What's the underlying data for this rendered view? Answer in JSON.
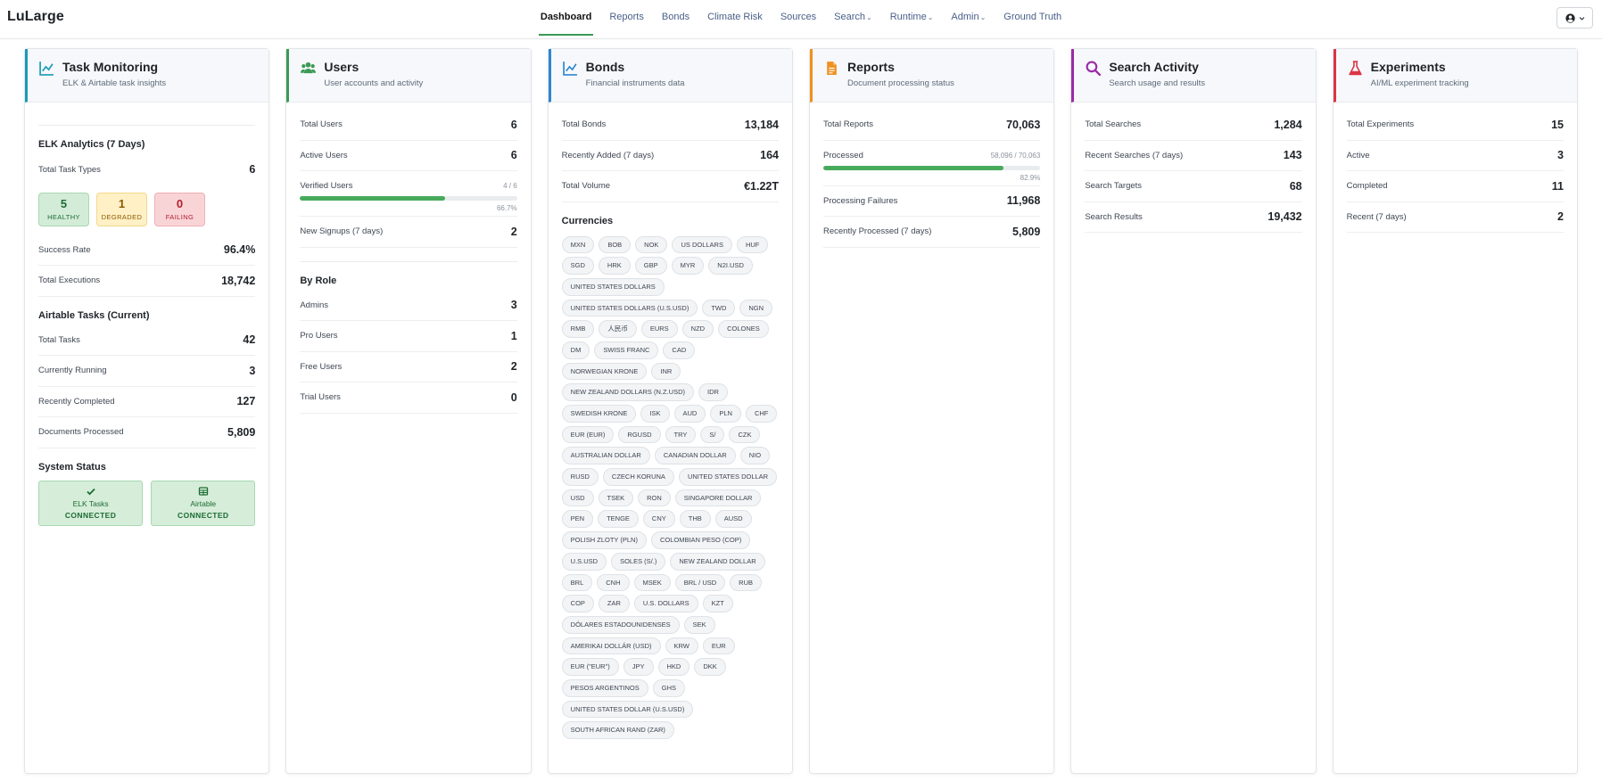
{
  "nav": {
    "brand": "LuLarge",
    "links": [
      {
        "label": "Dashboard",
        "active": true
      },
      {
        "label": "Reports"
      },
      {
        "label": "Bonds"
      },
      {
        "label": "Climate Risk"
      },
      {
        "label": "Sources"
      },
      {
        "label": "Search",
        "dropdown": true
      },
      {
        "label": "Runtime",
        "dropdown": true
      },
      {
        "label": "Admin",
        "dropdown": true
      },
      {
        "label": "Ground Truth"
      }
    ],
    "user_icon": "user-circle-icon",
    "chevron": "chevron-down-icon"
  },
  "colors": {
    "task": "#1a9bb5",
    "users": "#3a9a56",
    "bonds": "#2f86d1",
    "reports": "#f0901f",
    "search": "#9b2aa8",
    "experiments": "#dc3545",
    "success": "#47aa5b"
  },
  "task": {
    "icon": "chart-line-icon",
    "title": "Task Monitoring",
    "subtitle": "ELK & Airtable task insights",
    "elk_heading": "ELK Analytics (7 Days)",
    "total_task_types_label": "Total Task Types",
    "total_task_types": "6",
    "badges": [
      {
        "num": "5",
        "label": "HEALTHY"
      },
      {
        "num": "1",
        "label": "DEGRADED"
      },
      {
        "num": "0",
        "label": "FAILING"
      }
    ],
    "success_rate_label": "Success Rate",
    "success_rate": "96.4%",
    "total_exec_label": "Total Executions",
    "total_exec": "18,742",
    "airtable_heading": "Airtable Tasks (Current)",
    "airtable_rows": [
      {
        "label": "Total Tasks",
        "value": "42"
      },
      {
        "label": "Currently Running",
        "value": "3"
      },
      {
        "label": "Recently Completed",
        "value": "127"
      },
      {
        "label": "Documents Processed",
        "value": "5,809"
      }
    ],
    "system_heading": "System Status",
    "status": [
      {
        "icon": "check-icon",
        "name": "ELK Tasks",
        "state": "CONNECTED"
      },
      {
        "icon": "table-icon",
        "name": "Airtable",
        "state": "CONNECTED"
      }
    ]
  },
  "users": {
    "icon": "users-icon",
    "title": "Users",
    "subtitle": "User accounts and activity",
    "total_label": "Total Users",
    "total": "6",
    "active_label": "Active Users",
    "active": "6",
    "verified_label": "Verified Users",
    "verified_count": "4 / 6",
    "verified_pct": "66.7%",
    "verified_fraction": 0.667,
    "signups_label": "New Signups (7 days)",
    "signups": "2",
    "role_heading": "By Role",
    "roles": [
      {
        "label": "Admins",
        "value": "3"
      },
      {
        "label": "Pro Users",
        "value": "1"
      },
      {
        "label": "Free Users",
        "value": "2"
      },
      {
        "label": "Trial Users",
        "value": "0"
      }
    ]
  },
  "bonds": {
    "icon": "chart-line-icon",
    "title": "Bonds",
    "subtitle": "Financial instruments data",
    "rows": [
      {
        "label": "Total Bonds",
        "value": "13,184"
      },
      {
        "label": "Recently Added (7 days)",
        "value": "164"
      },
      {
        "label": "Total Volume",
        "value": "€1.22T"
      }
    ],
    "currencies_heading": "Currencies",
    "currencies": [
      "MXN",
      "BOB",
      "NOK",
      "US DOLLARS",
      "HUF",
      "SGD",
      "HRK",
      "GBP",
      "MYR",
      "N2I.USD",
      "UNITED STATES DOLLARS",
      "UNITED STATES DOLLARS (U.S.USD)",
      "TWD",
      "NGN",
      "RMB",
      "人民币",
      "EURS",
      "NZD",
      "COLONES",
      "DM",
      "SWISS FRANC",
      "CAD",
      "NORWEGIAN KRONE",
      "INR",
      "NEW ZEALAND DOLLARS (N.Z.USD)",
      "IDR",
      "SWEDISH KRONE",
      "ISK",
      "AUD",
      "PLN",
      "CHF",
      "EUR (EUR)",
      "RGUSD",
      "TRY",
      "S/",
      "CZK",
      "AUSTRALIAN DOLLAR",
      "CANADIAN DOLLAR",
      "NIO",
      "RUSD",
      "CZECH KORUNA",
      "UNITED STATES DOLLAR",
      "USD",
      "TSEK",
      "RON",
      "SINGAPORE DOLLAR",
      "PEN",
      "TENGE",
      "CNY",
      "THB",
      "AUSD",
      "POLISH ZLOTY (PLN)",
      "COLOMBIAN PESO (COP)",
      "U.S.USD",
      "SOLES (S/.)",
      "NEW ZEALAND DOLLAR",
      "BRL",
      "CNH",
      "MSEK",
      "BRL / USD",
      "RUB",
      "COP",
      "ZAR",
      "U.S. DOLLARS",
      "KZT",
      "DÓLARES ESTADOUNIDENSES",
      "SEK",
      "AMERIKAI DOLLÁR (USD)",
      "KRW",
      "EUR",
      "EUR (\"EUR\")",
      "JPY",
      "HKD",
      "DKK",
      "PESOS ARGENTINOS",
      "GHS",
      "UNITED STATES DOLLAR (U.S.USD)",
      "SOUTH AFRICAN RAND (ZAR)"
    ]
  },
  "reports": {
    "icon": "file-icon",
    "title": "Reports",
    "subtitle": "Document processing status",
    "total_label": "Total Reports",
    "total": "70,063",
    "processed_label": "Processed",
    "processed_count": "58,096 / 70,063",
    "processed_pct": "82.9%",
    "processed_fraction": 0.829,
    "rows": [
      {
        "label": "Processing Failures",
        "value": "11,968"
      },
      {
        "label": "Recently Processed (7 days)",
        "value": "5,809"
      }
    ]
  },
  "search": {
    "icon": "search-icon",
    "title": "Search Activity",
    "subtitle": "Search usage and results",
    "rows": [
      {
        "label": "Total Searches",
        "value": "1,284"
      },
      {
        "label": "Recent Searches (7 days)",
        "value": "143"
      },
      {
        "label": "Search Targets",
        "value": "68"
      },
      {
        "label": "Search Results",
        "value": "19,432"
      }
    ]
  },
  "experiments": {
    "icon": "flask-icon",
    "title": "Experiments",
    "subtitle": "AI/ML experiment tracking",
    "rows": [
      {
        "label": "Total Experiments",
        "value": "15"
      },
      {
        "label": "Active",
        "value": "3"
      },
      {
        "label": "Completed",
        "value": "11"
      },
      {
        "label": "Recent (7 days)",
        "value": "2"
      }
    ]
  }
}
